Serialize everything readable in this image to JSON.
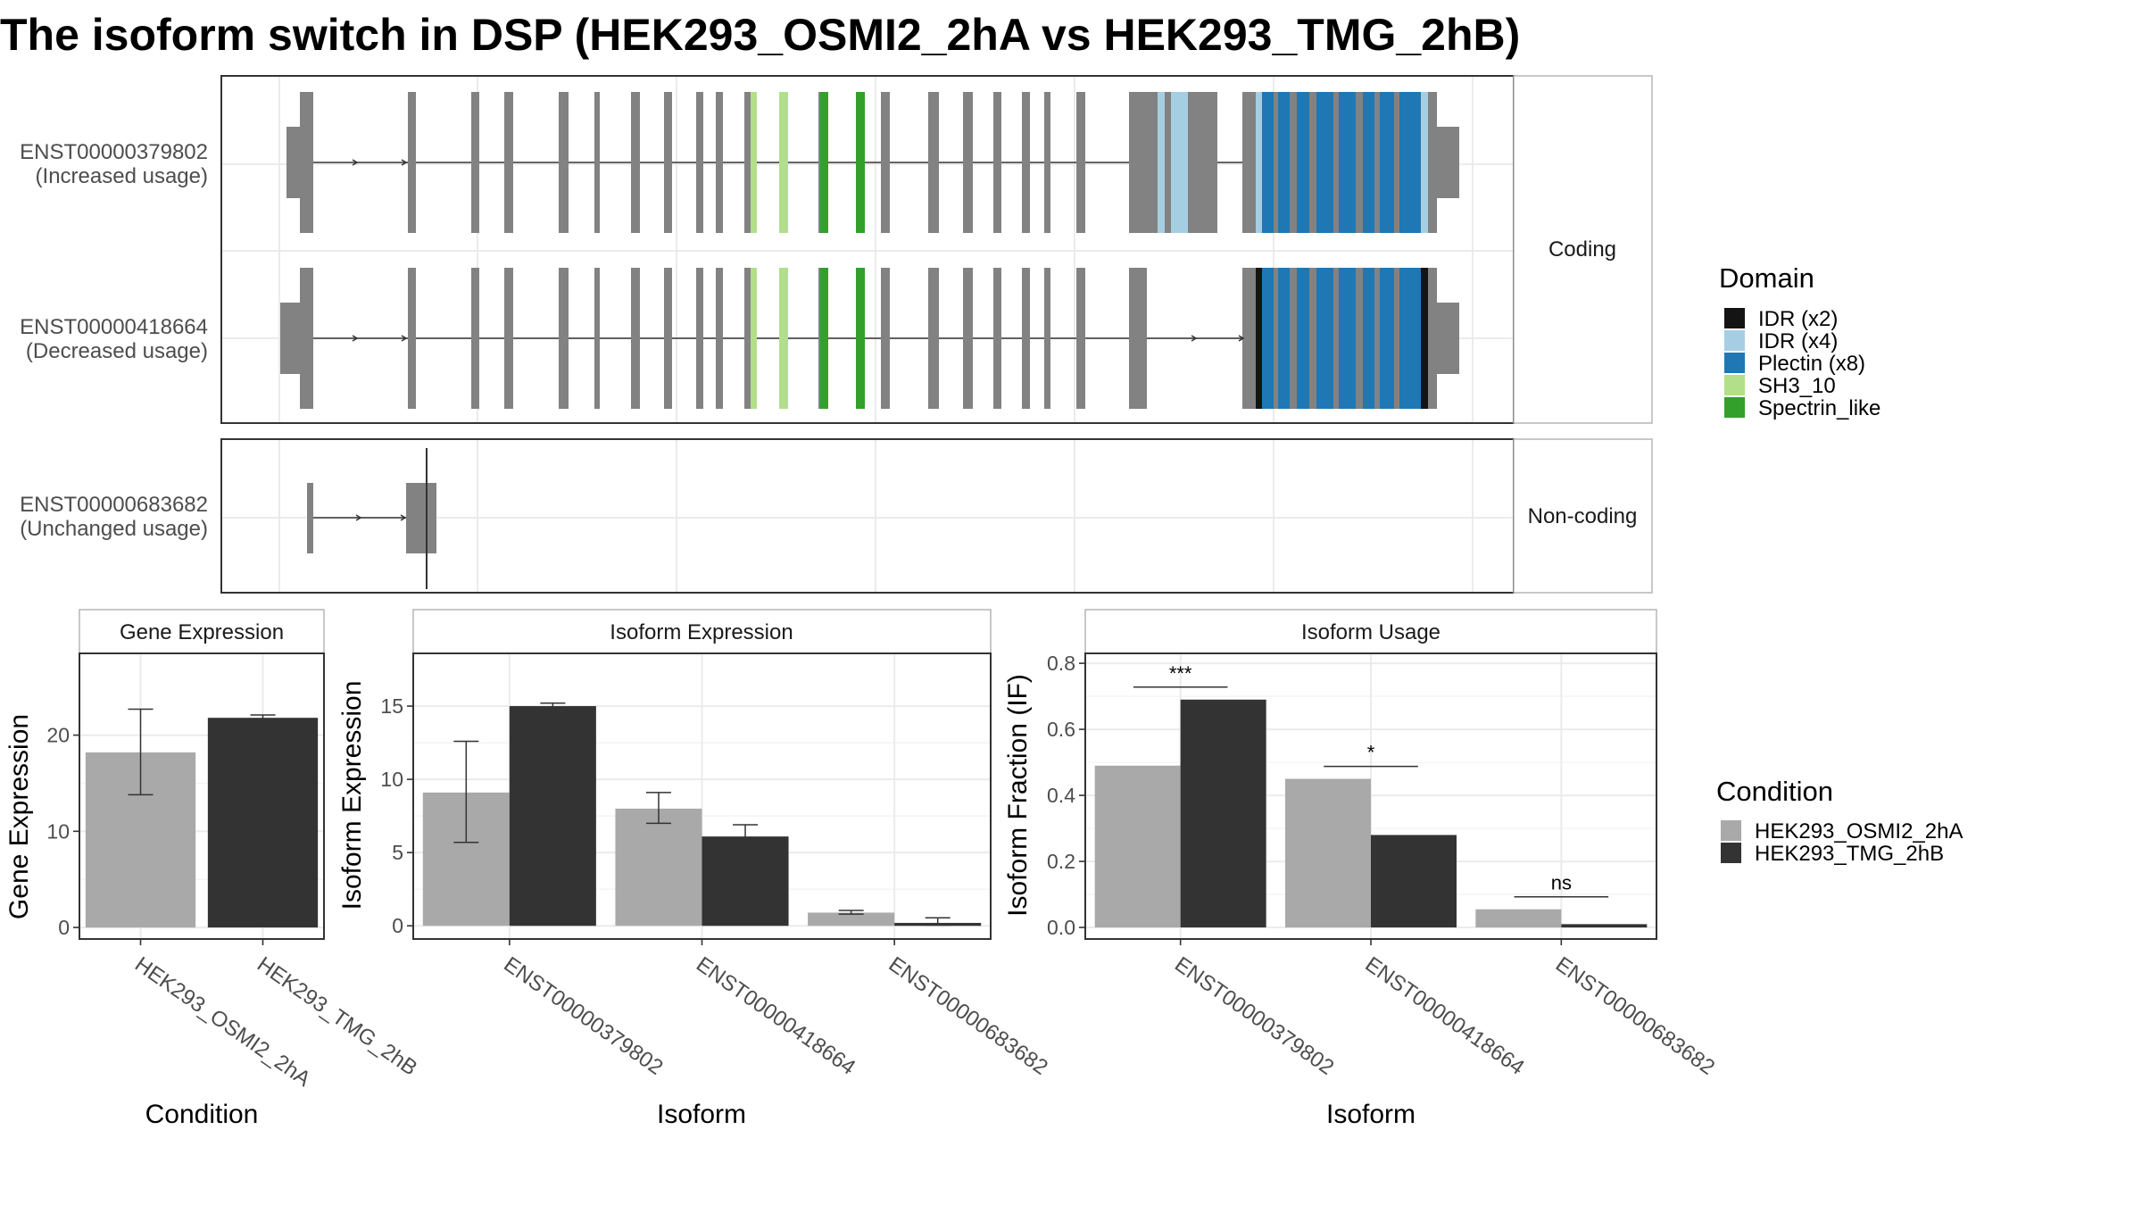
{
  "figure": {
    "title": "The isoform switch in DSP (HEK293_OSMI2_2hA vs HEK293_TMG_2hB)"
  },
  "transcript_panel": {
    "coding_strip": "Coding",
    "noncoding_strip": "Non-coding",
    "isoforms": [
      {
        "id": "ENST00000379802",
        "usage": "(Increased usage)",
        "group": "Coding"
      },
      {
        "id": "ENST00000418664",
        "usage": "(Decreased usage)",
        "group": "Coding"
      },
      {
        "id": "ENST00000683682",
        "usage": "(Unchanged usage)",
        "group": "Non-coding"
      }
    ]
  },
  "domain_legend": {
    "title": "Domain",
    "items": [
      {
        "label": "IDR (x2)",
        "color": "#141414"
      },
      {
        "label": "IDR (x4)",
        "color": "#a6cee3"
      },
      {
        "label": "Plectin (x8)",
        "color": "#1f78b4"
      },
      {
        "label": "SH3_10",
        "color": "#b2df8a"
      },
      {
        "label": "Spectrin_like",
        "color": "#33a02c"
      }
    ]
  },
  "condition_legend": {
    "title": "Condition",
    "items": [
      {
        "label": "HEK293_OSMI2_2hA",
        "color": "#a9a9a9"
      },
      {
        "label": "HEK293_TMG_2hB",
        "color": "#333333"
      }
    ]
  },
  "chart_data": [
    {
      "type": "bar",
      "title": "Gene Expression",
      "xlabel": "Condition",
      "ylabel": "Gene Expression",
      "categories": [
        "HEK293_OSMI2_2hA",
        "HEK293_TMG_2hB"
      ],
      "values": [
        18.2,
        21.8
      ],
      "error_low": [
        13.8,
        21.4
      ],
      "error_high": [
        22.7,
        22.1
      ],
      "colors": [
        "#a9a9a9",
        "#333333"
      ],
      "ylim": [
        -1.2,
        28.5
      ],
      "yticks": [
        0,
        10,
        20
      ],
      "grid": true
    },
    {
      "type": "bar",
      "title": "Isoform Expression",
      "xlabel": "Isoform",
      "ylabel": "Isoform Expression",
      "categories": [
        "ENST00000379802",
        "ENST00000418664",
        "ENST00000683682"
      ],
      "series": [
        {
          "name": "HEK293_OSMI2_2hA",
          "values": [
            9.1,
            8.0,
            0.9
          ],
          "error_low": [
            5.7,
            7.0,
            0.8
          ],
          "error_high": [
            12.6,
            9.1,
            1.05
          ]
        },
        {
          "name": "HEK293_TMG_2hB",
          "values": [
            15.0,
            6.1,
            0.2
          ],
          "error_low": [
            14.8,
            5.4,
            0.05
          ],
          "error_high": [
            15.2,
            6.9,
            0.55
          ]
        }
      ],
      "ylim": [
        -0.9,
        18.6
      ],
      "yticks": [
        0,
        5,
        10,
        15
      ],
      "grid": true
    },
    {
      "type": "bar",
      "title": "Isoform Usage",
      "xlabel": "Isoform",
      "ylabel": "Isoform Fraction (IF)",
      "categories": [
        "ENST00000379802",
        "ENST00000418664",
        "ENST00000683682"
      ],
      "series": [
        {
          "name": "HEK293_OSMI2_2hA",
          "values": [
            0.49,
            0.45,
            0.055
          ]
        },
        {
          "name": "HEK293_TMG_2hB",
          "values": [
            0.69,
            0.28,
            0.01
          ]
        }
      ],
      "significance": [
        "***",
        "*",
        "ns"
      ],
      "ylim": [
        -0.035,
        0.83
      ],
      "yticks": [
        0.0,
        0.2,
        0.4,
        0.6,
        0.8
      ],
      "ytick_labels": [
        "0.0",
        "0.2",
        "0.4",
        "0.6",
        "0.8"
      ],
      "grid": true
    }
  ]
}
